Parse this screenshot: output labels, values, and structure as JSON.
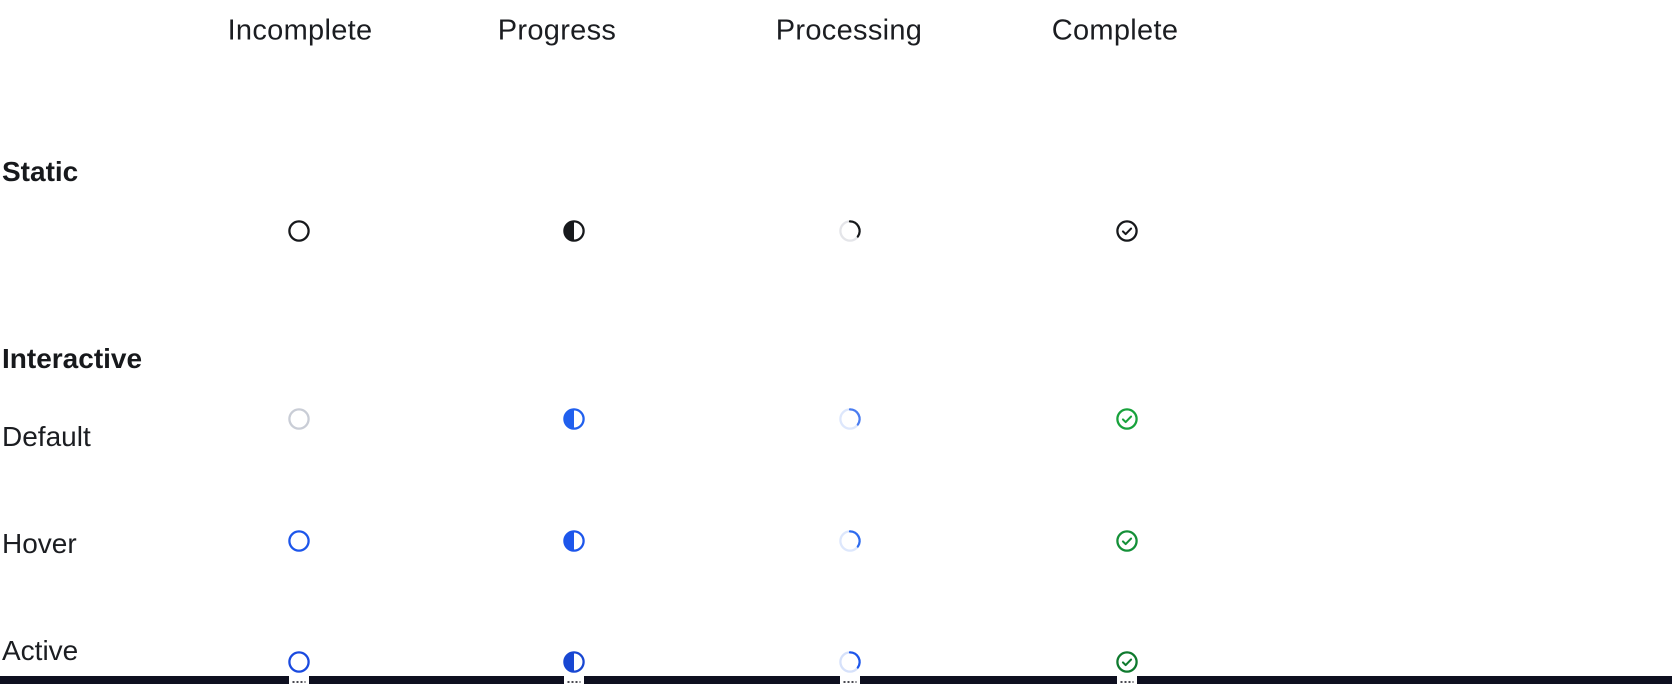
{
  "columns": [
    {
      "label": "Incomplete"
    },
    {
      "label": "Progress"
    },
    {
      "label": "Processing"
    },
    {
      "label": "Complete"
    }
  ],
  "section_labels": {
    "static": "Static",
    "interactive": "Interactive"
  },
  "colors": {
    "text_dark": "#1B1D21",
    "static_icon": "#17191C",
    "static_spinner_track": "#E4E5E9",
    "default_incomplete_gray": "#C9CDD6",
    "blue": "#1D56EB",
    "blue_active": "#1847D2",
    "blue_spinner_track": "#DDE7FC",
    "green": "#18A23C",
    "bottom_bar": "#0E0F20"
  },
  "icon_grid": [
    {
      "row": "static",
      "label": "",
      "icons": [
        {
          "name": "incomplete-circle",
          "type": "circle-empty",
          "color": "#17191C"
        },
        {
          "name": "progress-half-circle",
          "type": "circle-half",
          "color": "#17191C"
        },
        {
          "name": "processing-spinner",
          "type": "spinner",
          "color": "#17191C",
          "track": "#E4E5E9"
        },
        {
          "name": "complete-check-circle",
          "type": "circle-check",
          "color": "#17191C"
        }
      ]
    },
    {
      "row": "default",
      "label": "Default",
      "icons": [
        {
          "name": "incomplete-circle",
          "type": "circle-empty",
          "color": "#C9CDD6"
        },
        {
          "name": "progress-half-circle",
          "type": "circle-half",
          "color": "#2160EE"
        },
        {
          "name": "processing-spinner",
          "type": "spinner",
          "color": "#4A7CF0",
          "track": "#DDE7FC"
        },
        {
          "name": "complete-check-circle",
          "type": "circle-check",
          "color": "#18A23C"
        }
      ]
    },
    {
      "row": "hover",
      "label": "Hover",
      "icons": [
        {
          "name": "incomplete-circle",
          "type": "circle-empty",
          "color": "#1D56EB"
        },
        {
          "name": "progress-half-circle",
          "type": "circle-half",
          "color": "#1D56EB"
        },
        {
          "name": "processing-spinner",
          "type": "spinner",
          "color": "#2E6BEF",
          "track": "#DDE7FC"
        },
        {
          "name": "complete-check-circle",
          "type": "circle-check",
          "color": "#149038"
        }
      ]
    },
    {
      "row": "active",
      "label": "Active",
      "icons": [
        {
          "name": "incomplete-circle",
          "type": "circle-empty",
          "color": "#1A4ADF"
        },
        {
          "name": "progress-half-circle",
          "type": "circle-half",
          "color": "#1847D2"
        },
        {
          "name": "processing-spinner",
          "type": "spinner",
          "color": "#1D56EB",
          "track": "#D6E1FA"
        },
        {
          "name": "complete-check-circle",
          "type": "circle-check",
          "color": "#0F7A2E"
        }
      ]
    }
  ],
  "bottom_bar": {
    "notch_count": 4
  }
}
